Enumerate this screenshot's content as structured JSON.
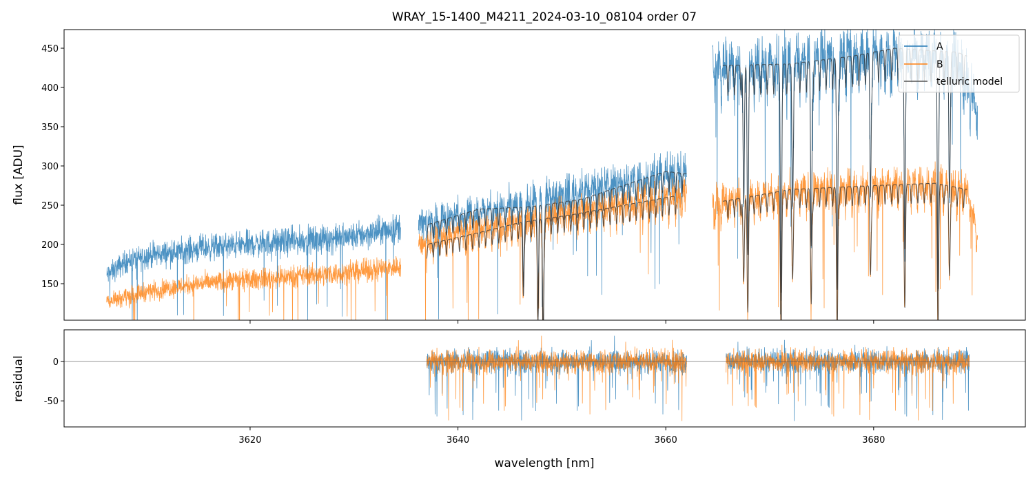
{
  "chart_data": {
    "type": "line",
    "title": "WRAY_15-1400_M4211_2024-03-10_08104  order 07",
    "xlabel": "wavelength [nm]",
    "xlim": [
      3602.1,
      3694.6
    ],
    "xticks": [
      3620,
      3640,
      3660,
      3680
    ],
    "colors": {
      "A": "#1f77b4",
      "B": "#ff7f0e",
      "model": "#333333"
    },
    "legend": {
      "placement": "top-right",
      "entries": [
        "A",
        "B",
        "telluric model"
      ]
    },
    "top_panel": {
      "ylabel": "flux [ADU]",
      "ylim": [
        103.5,
        473.7
      ],
      "yticks": [
        150,
        200,
        250,
        300,
        350,
        400,
        450
      ],
      "series": [
        {
          "name": "A",
          "segments": [
            [
              [
                3606.2,
                160
              ],
              [
                3608,
                178
              ],
              [
                3610,
                185
              ],
              [
                3615,
                195
              ],
              [
                3620,
                200
              ],
              [
                3625,
                205
              ],
              [
                3630,
                210
              ],
              [
                3634.5,
                222
              ]
            ],
            [
              [
                3636.2,
                225
              ],
              [
                3640,
                240
              ],
              [
                3645,
                250
              ],
              [
                3650,
                265
              ],
              [
                3655,
                280
              ],
              [
                3660,
                290
              ],
              [
                3662,
                295
              ]
            ],
            [
              [
                3664.5,
                430
              ],
              [
                3670,
                430
              ],
              [
                3675,
                440
              ],
              [
                3680,
                445
              ],
              [
                3685,
                445
              ],
              [
                3688,
                440
              ],
              [
                3690,
                380
              ]
            ]
          ]
        },
        {
          "name": "B",
          "segments": [
            [
              [
                3606.2,
                128
              ],
              [
                3610,
                140
              ],
              [
                3615,
                150
              ],
              [
                3620,
                155
              ],
              [
                3625,
                160
              ],
              [
                3630,
                165
              ],
              [
                3634.5,
                172
              ]
            ],
            [
              [
                3636.2,
                200
              ],
              [
                3640,
                215
              ],
              [
                3645,
                225
              ],
              [
                3650,
                240
              ],
              [
                3655,
                250
              ],
              [
                3660,
                260
              ],
              [
                3662,
                265
              ]
            ],
            [
              [
                3664.5,
                255
              ],
              [
                3670,
                265
              ],
              [
                3675,
                270
              ],
              [
                3680,
                275
              ],
              [
                3685,
                280
              ],
              [
                3689,
                270
              ],
              [
                3690,
                215
              ]
            ]
          ]
        },
        {
          "name": "telluric model",
          "segments": [
            [
              [
                3637,
                225
              ],
              [
                3642,
                245
              ],
              [
                3647,
                248
              ],
              [
                3652,
                258
              ],
              [
                3657,
                280
              ],
              [
                3660,
                293
              ],
              [
                3662,
                290
              ]
            ],
            [
              [
                3665.5,
                428
              ],
              [
                3672,
                430
              ],
              [
                3678,
                440
              ],
              [
                3682,
                450
              ],
              [
                3688,
                445
              ],
              [
                3689,
                440
              ]
            ],
            [
              [
                3637,
                200
              ],
              [
                3642,
                215
              ],
              [
                3646,
                228
              ],
              [
                3651,
                238
              ],
              [
                3656,
                250
              ],
              [
                3661,
                262
              ]
            ],
            [
              [
                3665.5,
                255
              ],
              [
                3672,
                270
              ],
              [
                3680,
                275
              ],
              [
                3686,
                278
              ],
              [
                3689,
                270
              ]
            ]
          ]
        }
      ],
      "telluric_lines_nm": [
        3646.3,
        3647.7,
        3648.2,
        3667.5,
        3667.9,
        3671.1,
        3672.2,
        3674.0,
        3676.5,
        3679.7,
        3683.0,
        3686.2,
        3687.3
      ]
    },
    "residual_panel": {
      "ylabel": "residual",
      "ylim": [
        -83,
        40
      ],
      "yticks": [
        -50,
        0
      ],
      "series": [
        {
          "name": "A",
          "ranges": [
            [
              3637,
              3662
            ],
            [
              3665.8,
              3689.2
            ]
          ],
          "noise": 10
        },
        {
          "name": "B",
          "ranges": [
            [
              3637,
              3662
            ],
            [
              3665.8,
              3689.2
            ]
          ],
          "noise": 10
        }
      ]
    }
  }
}
